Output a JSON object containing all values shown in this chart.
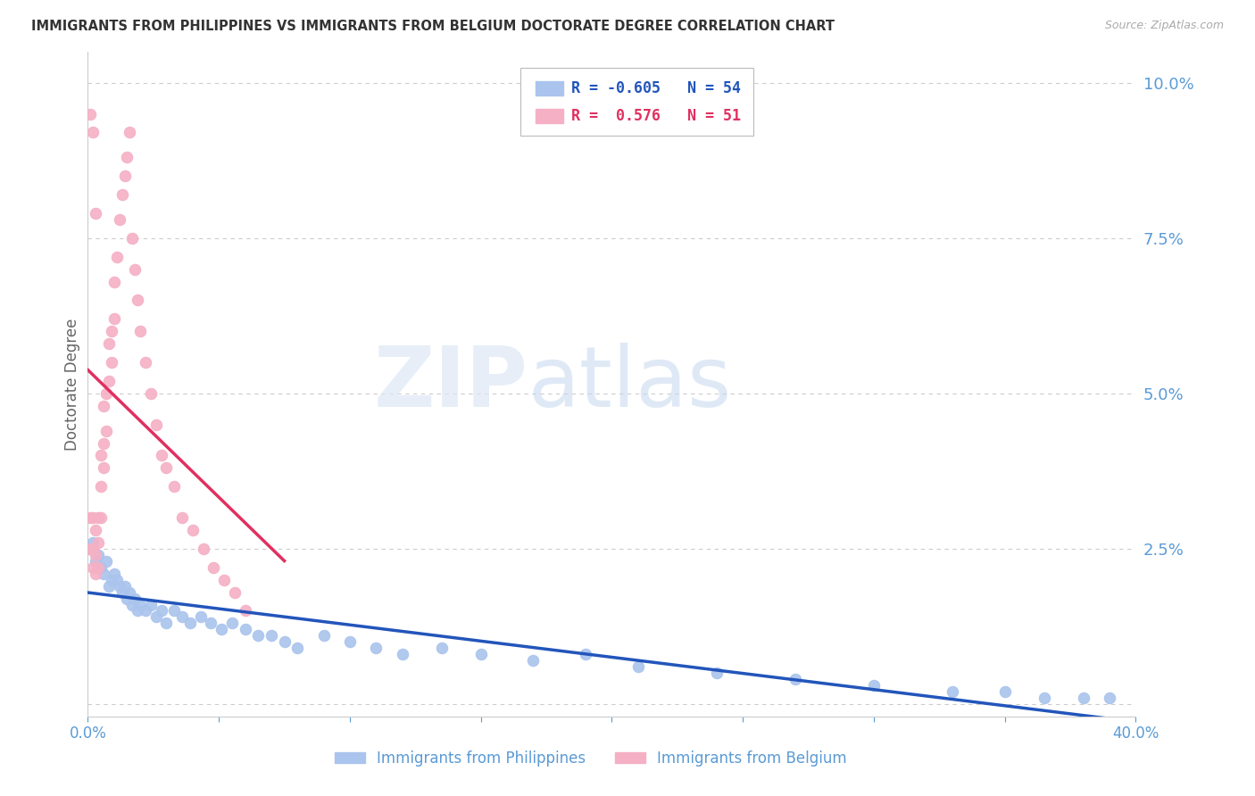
{
  "title": "IMMIGRANTS FROM PHILIPPINES VS IMMIGRANTS FROM BELGIUM DOCTORATE DEGREE CORRELATION CHART",
  "source": "Source: ZipAtlas.com",
  "ylabel": "Doctorate Degree",
  "legend_r_philippines": "-0.605",
  "legend_n_philippines": "54",
  "legend_r_belgium": "0.576",
  "legend_n_belgium": "51",
  "philippines_color": "#aac4ed",
  "belgium_color": "#f5b0c5",
  "philippines_line_color": "#2255bb",
  "belgium_line_color": "#e03060",
  "watermark_zip": "ZIP",
  "watermark_atlas": "atlas",
  "background_color": "#ffffff",
  "grid_color": "#cccccc",
  "axis_color": "#5b9bd5",
  "title_color": "#333333",
  "philippines_x": [
    0.001,
    0.002,
    0.003,
    0.004,
    0.005,
    0.006,
    0.007,
    0.008,
    0.009,
    0.01,
    0.011,
    0.012,
    0.013,
    0.014,
    0.015,
    0.016,
    0.017,
    0.018,
    0.019,
    0.02,
    0.022,
    0.024,
    0.026,
    0.028,
    0.03,
    0.033,
    0.036,
    0.039,
    0.043,
    0.047,
    0.051,
    0.055,
    0.06,
    0.065,
    0.07,
    0.075,
    0.08,
    0.09,
    0.1,
    0.11,
    0.12,
    0.135,
    0.15,
    0.17,
    0.19,
    0.21,
    0.24,
    0.27,
    0.3,
    0.33,
    0.35,
    0.365,
    0.38,
    0.39
  ],
  "philippines_y": [
    0.025,
    0.026,
    0.023,
    0.024,
    0.022,
    0.021,
    0.023,
    0.019,
    0.02,
    0.021,
    0.02,
    0.019,
    0.018,
    0.019,
    0.017,
    0.018,
    0.016,
    0.017,
    0.015,
    0.016,
    0.015,
    0.016,
    0.014,
    0.015,
    0.013,
    0.015,
    0.014,
    0.013,
    0.014,
    0.013,
    0.012,
    0.013,
    0.012,
    0.011,
    0.011,
    0.01,
    0.009,
    0.011,
    0.01,
    0.009,
    0.008,
    0.009,
    0.008,
    0.007,
    0.008,
    0.006,
    0.005,
    0.004,
    0.003,
    0.002,
    0.002,
    0.001,
    0.001,
    0.001
  ],
  "belgium_x": [
    0.001,
    0.001,
    0.002,
    0.002,
    0.002,
    0.003,
    0.003,
    0.003,
    0.004,
    0.004,
    0.004,
    0.005,
    0.005,
    0.005,
    0.006,
    0.006,
    0.006,
    0.007,
    0.007,
    0.008,
    0.008,
    0.009,
    0.009,
    0.01,
    0.01,
    0.011,
    0.012,
    0.013,
    0.014,
    0.015,
    0.016,
    0.017,
    0.018,
    0.019,
    0.02,
    0.022,
    0.024,
    0.026,
    0.028,
    0.03,
    0.033,
    0.036,
    0.04,
    0.044,
    0.048,
    0.052,
    0.056,
    0.06,
    0.001,
    0.002,
    0.003
  ],
  "belgium_y": [
    0.03,
    0.025,
    0.03,
    0.025,
    0.022,
    0.028,
    0.024,
    0.021,
    0.03,
    0.026,
    0.022,
    0.04,
    0.035,
    0.03,
    0.048,
    0.042,
    0.038,
    0.05,
    0.044,
    0.058,
    0.052,
    0.06,
    0.055,
    0.068,
    0.062,
    0.072,
    0.078,
    0.082,
    0.085,
    0.088,
    0.092,
    0.075,
    0.07,
    0.065,
    0.06,
    0.055,
    0.05,
    0.045,
    0.04,
    0.038,
    0.035,
    0.03,
    0.028,
    0.025,
    0.022,
    0.02,
    0.018,
    0.015,
    0.095,
    0.092,
    0.079
  ],
  "xlim": [
    0.0,
    0.4
  ],
  "ylim": [
    -0.002,
    0.105
  ],
  "ytick_vals": [
    0.0,
    0.025,
    0.05,
    0.075,
    0.1
  ]
}
